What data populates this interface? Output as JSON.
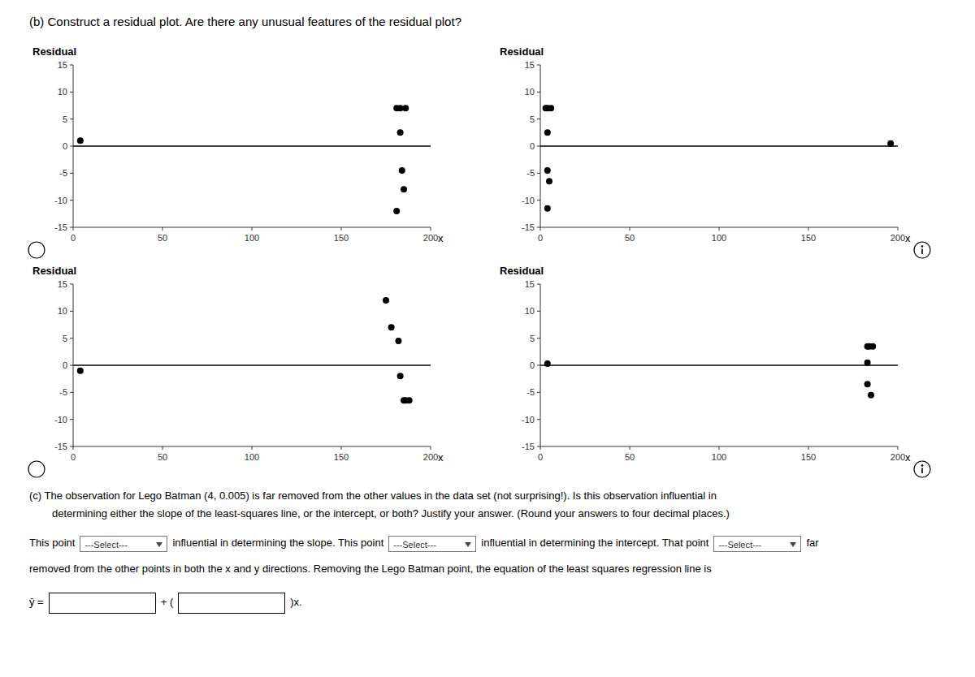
{
  "title": "(b)  Construct a residual plot. Are there any unusual features of the residual plot?",
  "annotations": [
    "(c)  The observation for Lego Batman (4, 0.005) is far removed from the other values in the data set (not surprising!). Is this observation influential in",
    "determining either the slope of the least-squares line, or the intercept, or both? Justify your answer. (Round your answers to four decimal places.)",
    "This point",
    "---Select---",
    "influential in determining the slope. This point",
    "---Select---",
    "influential in determining the intercept. That point",
    "---Select---",
    "far",
    "removed from the other points in both the x and y directions. Removing the Lego Batman point, the equation of the least squares regression line is",
    "ŷ =",
    "+ (",
    ")x."
  ],
  "chart_data": [
    {
      "type": "scatter",
      "ylabel": "Residual",
      "xlabel": "x",
      "color": "#000000",
      "x": [
        4,
        181,
        183,
        186,
        183,
        184,
        185,
        181
      ],
      "values": [
        1.0,
        7.0,
        7.0,
        7.0,
        2.5,
        -4.5,
        -8.0,
        -12.0
      ],
      "xlim": [
        0,
        200
      ],
      "ylim": [
        -15,
        15
      ],
      "xticks": [
        0,
        50,
        100,
        150,
        200
      ],
      "yticks": [
        -15,
        -10,
        -5,
        0,
        5,
        10,
        15
      ]
    },
    {
      "type": "scatter",
      "ylabel": "Residual",
      "xlabel": "x",
      "color": "#000000",
      "x": [
        3,
        4,
        6,
        4,
        4,
        5,
        4,
        196
      ],
      "values": [
        7.0,
        7.0,
        7.0,
        2.5,
        -4.5,
        -6.5,
        -11.5,
        0.5
      ],
      "xlim": [
        0,
        200
      ],
      "ylim": [
        -15,
        15
      ],
      "xticks": [
        0,
        50,
        100,
        150,
        200
      ],
      "yticks": [
        -15,
        -10,
        -5,
        0,
        5,
        10,
        15
      ]
    },
    {
      "type": "scatter",
      "ylabel": "Residual",
      "xlabel": "x",
      "color": "#000000",
      "x": [
        4,
        175,
        178,
        182,
        183,
        185,
        186,
        188
      ],
      "values": [
        -1.0,
        12.0,
        7.0,
        4.5,
        -2.0,
        -6.5,
        -6.5,
        -6.5
      ],
      "xlim": [
        0,
        200
      ],
      "ylim": [
        -15,
        15
      ],
      "xticks": [
        0,
        50,
        100,
        150,
        200
      ],
      "yticks": [
        -15,
        -10,
        -5,
        0,
        5,
        10,
        15
      ]
    },
    {
      "type": "scatter",
      "ylabel": "Residual",
      "xlabel": "x",
      "color": "#000000",
      "x": [
        4,
        183,
        184,
        186,
        183,
        183,
        185
      ],
      "values": [
        0.3,
        3.5,
        3.5,
        3.5,
        0.5,
        -3.5,
        -5.5
      ],
      "xlim": [
        0,
        200
      ],
      "ylim": [
        -15,
        15
      ],
      "xticks": [
        0,
        50,
        100,
        150,
        200
      ],
      "yticks": [
        -15,
        -10,
        -5,
        0,
        5,
        10,
        15
      ]
    }
  ]
}
